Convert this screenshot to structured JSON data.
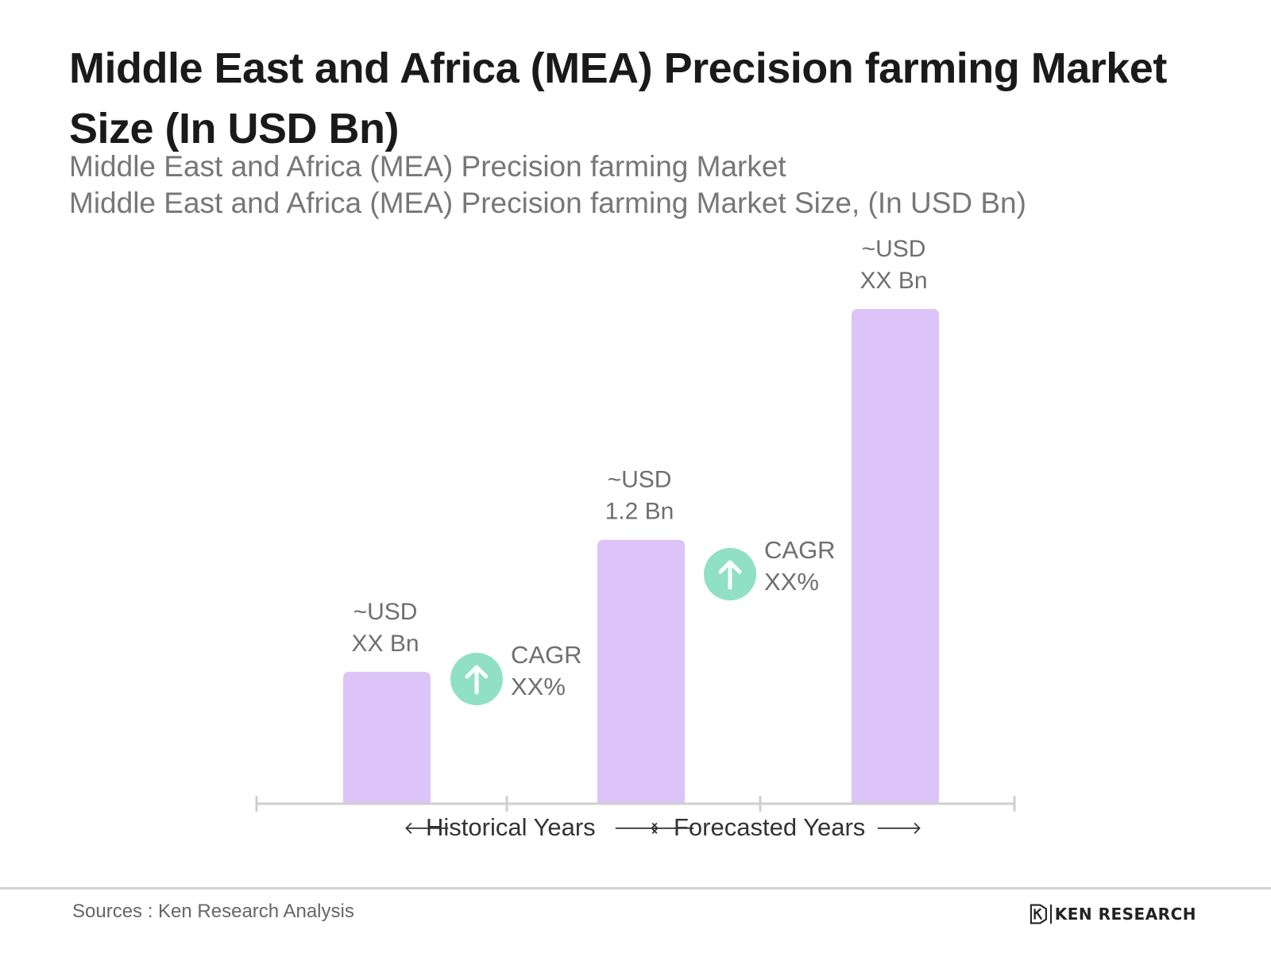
{
  "header": {
    "title": "Middle East and Africa (MEA) Precision farming Market Size (In USD Bn)",
    "subtitle_1": "Middle East and Africa (MEA) Precision farming Market",
    "subtitle_2": "Middle East and Africa (MEA) Precision farming Market Size, (In USD Bn)"
  },
  "chart_data": {
    "type": "bar",
    "categories": [
      "",
      "",
      ""
    ],
    "values": [
      0.6,
      1.2,
      2.25
    ],
    "data_labels": [
      [
        "~USD",
        "XX Bn"
      ],
      [
        "~USD",
        "1.2 Bn"
      ],
      [
        "~USD",
        "XX Bn"
      ]
    ],
    "ylim": [
      0,
      2.25
    ],
    "grid": false,
    "cagr_badges": [
      {
        "label": "CAGR",
        "value": "XX%"
      },
      {
        "label": "CAGR",
        "value": "XX%"
      }
    ],
    "periods": [
      {
        "label": "Historical Years",
        "left_arrow": "🡐",
        "right_arrow": "🡒"
      },
      {
        "label": "Forecasted Years",
        "left_arrow": "🡐",
        "right_arrow": "🡒"
      }
    ],
    "colors": {
      "bar": "#dcc3f8",
      "axis": "#cfcfcf",
      "badge": "#8fe0c4",
      "label": "#6f6f6f",
      "period_label": "#333333"
    }
  },
  "footer": {
    "source": "Sources : Ken Research Analysis",
    "logo_text": "KEN RESEARCH",
    "logo_icon": "ken-research-k-icon"
  }
}
